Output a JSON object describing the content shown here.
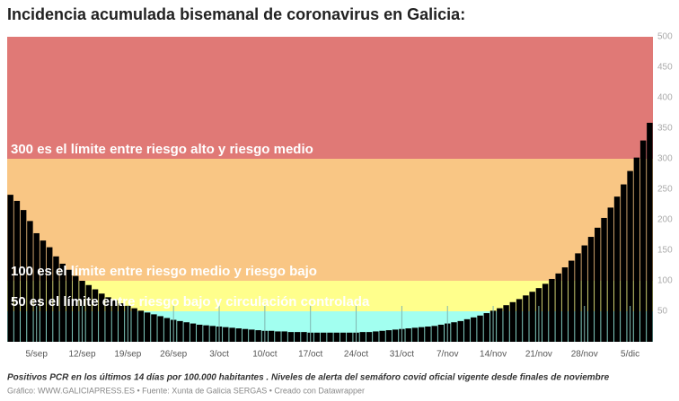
{
  "chart_data": {
    "type": "bar",
    "title": "Incidencia acumulada bisemanal de coronavirus en Galicia:",
    "note": "Positivos PCR en los últimos 14 días por 100.000 habitantes . Niveles de alerta del semáforo covid oficial vigente desde finales de noviembre",
    "credit": "Gráfico: WWW.GALICIAPRESS.ES • Fuente: Xunta de Galicia SERGAS • Creado con Datawrapper",
    "categories": [
      null,
      null,
      null,
      null,
      "5/sep",
      null,
      null,
      null,
      null,
      null,
      null,
      "12/sep",
      null,
      null,
      null,
      null,
      null,
      null,
      "19/sep",
      null,
      null,
      null,
      null,
      null,
      null,
      "26/sep",
      null,
      null,
      null,
      null,
      null,
      null,
      "3/oct",
      null,
      null,
      null,
      null,
      null,
      null,
      "10/oct",
      null,
      null,
      null,
      null,
      null,
      null,
      "17/oct",
      null,
      null,
      null,
      null,
      null,
      null,
      "24/oct",
      null,
      null,
      null,
      null,
      null,
      null,
      "31/oct",
      null,
      null,
      null,
      null,
      null,
      null,
      "7/nov",
      null,
      null,
      null,
      null,
      null,
      null,
      "14/nov",
      null,
      null,
      null,
      null,
      null,
      null,
      "21/nov",
      null,
      null,
      null,
      null,
      null,
      null,
      "28/nov",
      null,
      null,
      null,
      null,
      null,
      null,
      "5/dic",
      null,
      null,
      null
    ],
    "values": [
      241,
      231,
      216,
      198,
      178,
      166,
      155,
      140,
      128,
      118,
      108,
      100,
      93,
      86,
      79,
      73,
      68,
      63,
      59,
      55,
      51,
      48,
      45,
      42,
      39,
      36,
      34,
      32,
      30,
      28,
      27,
      26,
      25,
      24,
      23,
      22,
      21,
      20,
      19,
      18,
      18,
      17,
      17,
      16,
      16,
      16,
      15,
      15,
      15,
      15,
      15,
      15,
      15,
      15,
      16,
      16,
      17,
      18,
      19,
      20,
      21,
      22,
      23,
      24,
      25,
      26,
      28,
      30,
      32,
      34,
      37,
      40,
      43,
      47,
      51,
      55,
      60,
      65,
      70,
      76,
      82,
      88,
      95,
      103,
      112,
      122,
      133,
      145,
      158,
      172,
      187,
      203,
      220,
      238,
      258,
      280,
      302,
      330,
      359
    ],
    "color": "#000000",
    "ylim": [
      0,
      500
    ],
    "yticks": [
      50,
      100,
      150,
      200,
      250,
      300,
      350,
      400,
      450,
      500
    ],
    "bands": [
      {
        "from": 0,
        "to": 50,
        "color": "#a2fff0"
      },
      {
        "from": 50,
        "to": 100,
        "color": "#ffff8c",
        "label": "50 es el límite entre riesgo bajo y circulación controlada"
      },
      {
        "from": 100,
        "to": 300,
        "color": "#f9c684",
        "label": "100 es el límite entre riesgo medio y riesgo bajo"
      },
      {
        "from": 300,
        "to": 500,
        "color": "#e07976",
        "label": "300 es el límite entre riesgo alto y riesgo medio"
      }
    ]
  }
}
